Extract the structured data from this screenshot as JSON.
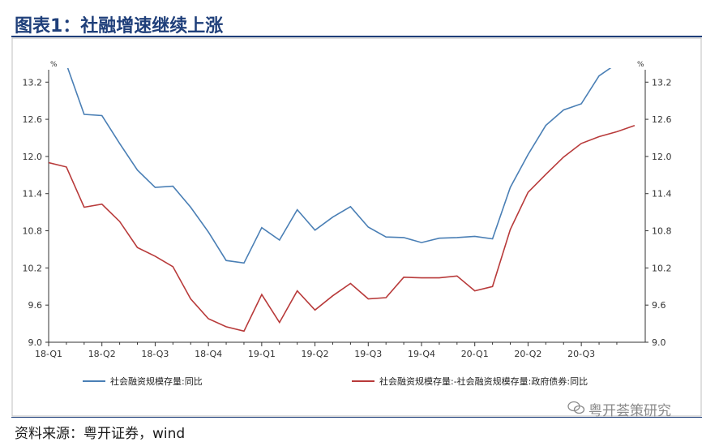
{
  "header": {
    "title": "图表1：社融增速继续上涨"
  },
  "footer": {
    "source": "资料来源：粤开证券，wind"
  },
  "watermark": {
    "text": "粤开荟策研究",
    "icon": "wechat-icon"
  },
  "colors": {
    "title": "#1f3f7a",
    "series1": "#4a7fb5",
    "series2": "#b83a3a",
    "axis": "#333333"
  },
  "chart_data": {
    "type": "line",
    "unit_left": "%",
    "unit_right": "%",
    "ylim": [
      9.0,
      13.4
    ],
    "yticks": [
      "9.0",
      "9.6",
      "10.2",
      "10.8",
      "11.4",
      "12.0",
      "12.6",
      "13.2"
    ],
    "x_tick_labels": [
      "18-Q1",
      "18-Q2",
      "18-Q3",
      "18-Q4",
      "19-Q1",
      "19-Q2",
      "19-Q3",
      "19-Q4",
      "20-Q1",
      "20-Q2",
      "20-Q3"
    ],
    "x_months": [
      "2018-01",
      "2018-02",
      "2018-03",
      "2018-04",
      "2018-05",
      "2018-06",
      "2018-07",
      "2018-08",
      "2018-09",
      "2018-10",
      "2018-11",
      "2018-12",
      "2019-01",
      "2019-02",
      "2019-03",
      "2019-04",
      "2019-05",
      "2019-06",
      "2019-07",
      "2019-08",
      "2019-09",
      "2019-10",
      "2019-11",
      "2019-12",
      "2020-01",
      "2020-02",
      "2020-03",
      "2020-04",
      "2020-05",
      "2020-06",
      "2020-07",
      "2020-08",
      "2020-09",
      "2020-10"
    ],
    "series": [
      {
        "name": "社会融资规模存量:同比",
        "values": [
          13.55,
          13.49,
          12.68,
          12.66,
          12.21,
          11.78,
          11.5,
          11.52,
          11.18,
          10.78,
          10.32,
          10.28,
          10.85,
          10.65,
          11.14,
          10.81,
          11.02,
          11.19,
          10.86,
          10.7,
          10.69,
          10.61,
          10.68,
          10.69,
          10.71,
          10.67,
          11.5,
          12.03,
          12.5,
          12.75,
          12.85,
          13.3,
          13.5,
          13.7
        ]
      },
      {
        "name": "社会融资规模存量:-社会融资规模存量:政府债券:同比",
        "values": [
          11.9,
          11.83,
          11.18,
          11.23,
          10.95,
          10.53,
          10.39,
          10.22,
          9.7,
          9.38,
          9.25,
          9.18,
          9.77,
          9.32,
          9.83,
          9.52,
          9.75,
          9.95,
          9.7,
          9.72,
          10.05,
          10.04,
          10.04,
          10.07,
          9.83,
          9.9,
          10.82,
          11.42,
          11.71,
          11.99,
          12.21,
          12.32,
          12.4,
          12.5
        ]
      }
    ]
  }
}
